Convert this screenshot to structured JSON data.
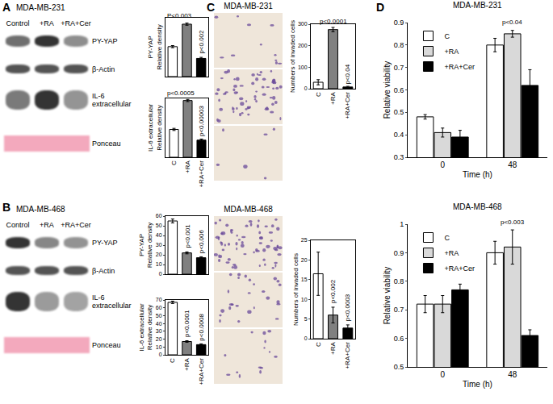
{
  "letters": [
    "A",
    "B",
    "C",
    "D"
  ],
  "blots": [
    {
      "cell_line": "MDA-MB-231",
      "lanes": [
        "Control",
        "+RA",
        "+RA+Cer"
      ],
      "rows": [
        "PY-YAP",
        "β-Actin",
        [
          "IL-6",
          "extracellular"
        ],
        "Ponceau"
      ]
    },
    {
      "cell_line": "MDA-MB-468",
      "lanes": [
        "Control",
        "+RA",
        "+RA+Cer"
      ],
      "rows": [
        "PY-YAP",
        "β-Actin",
        [
          "IL-6",
          "extracellular"
        ],
        "Ponceau"
      ]
    }
  ],
  "micrographs": [
    {
      "cell_line": "MDA-MB-231"
    },
    {
      "cell_line": "MDA-MB-468"
    }
  ],
  "chart_data": [
    {
      "type": "bar",
      "ylabel": [
        "PY-YAP",
        "Relative density"
      ],
      "categories": [
        "C",
        "+RA",
        "+RA+Cer"
      ],
      "values": [
        28,
        49,
        17
      ],
      "errors": [
        1,
        1,
        1
      ],
      "colors": [
        "#ffffff",
        "#808080",
        "#000000"
      ],
      "ylim": [
        0,
        55
      ],
      "tick_labels": false,
      "annotations": [
        {
          "text": "P<0.003",
          "categories": [
            "C",
            "+RA"
          ],
          "y": 52
        },
        {
          "text": "p<0.002",
          "category": "+RA+Cer",
          "y": 20
        }
      ]
    },
    {
      "type": "bar",
      "ylabel": [
        "IL-6 extracellular",
        "Relative density"
      ],
      "categories": [
        "C",
        "+RA",
        "+RA+Cer"
      ],
      "values": [
        26,
        53,
        16
      ],
      "errors": [
        1,
        1,
        1
      ],
      "colors": [
        "#ffffff",
        "#808080",
        "#000000"
      ],
      "ylim": [
        0,
        55
      ],
      "tick_labels": "x",
      "annotations": [
        {
          "text": "p<0.0005",
          "categories": [
            "C",
            "+RA"
          ],
          "y": 55
        },
        {
          "text": "p<0.00003",
          "category": "+RA+Cer",
          "y": 18
        }
      ]
    },
    {
      "type": "bar",
      "ylabel": [
        "PY-YAP",
        "Relative density"
      ],
      "categories": [
        "C",
        "+RA",
        "+RA+Cer"
      ],
      "values": [
        55,
        22,
        17
      ],
      "errors": [
        2,
        1,
        1
      ],
      "colors": [
        "#ffffff",
        "#808080",
        "#000000"
      ],
      "ylim": [
        0,
        60
      ],
      "yticks": [
        0,
        10,
        20,
        30,
        40,
        50,
        60
      ],
      "tick_labels": "y",
      "annotations": [
        {
          "text": "p<0.001",
          "category": "+RA",
          "y": 25
        },
        {
          "text": "p<0.006",
          "category": "+RA+Cer",
          "y": 20
        }
      ]
    },
    {
      "type": "bar",
      "ylabel": [
        "IL-6 extracellular",
        "Relative density"
      ],
      "categories": [
        "C",
        "+RA",
        "+RA+Cer"
      ],
      "values": [
        67,
        17,
        13
      ],
      "errors": [
        1.5,
        1,
        1
      ],
      "colors": [
        "#ffffff",
        "#808080",
        "#000000"
      ],
      "ylim": [
        0,
        70
      ],
      "yticks": [
        0,
        10,
        20,
        30,
        40,
        50,
        60,
        70
      ],
      "tick_labels": true,
      "annotations": [
        {
          "text": "p<0.0001",
          "category": "+RA",
          "y": 20
        },
        {
          "text": "p<0.0008",
          "category": "+RA+Cer",
          "y": 16
        }
      ]
    },
    {
      "type": "bar",
      "ylabel": "Numbers of invaded cells",
      "categories": [
        "C",
        "+RA",
        "+RA+Cer"
      ],
      "values": [
        30,
        275,
        8
      ],
      "errors": [
        12,
        10,
        3
      ],
      "colors": [
        "#ffffff",
        "#808080",
        "#000000"
      ],
      "ylim": [
        0,
        300
      ],
      "yticks": [
        0,
        100,
        200,
        300
      ],
      "tick_labels": true,
      "annotations": [
        {
          "text": "p<0.0001",
          "categories": [
            "+RA"
          ],
          "y": 290
        },
        {
          "text": "p<0.04",
          "category": "+RA+Cer",
          "y": 14
        }
      ]
    },
    {
      "type": "bar",
      "ylabel": "Numbers of invaded cells",
      "categories": [
        "C",
        "+RA",
        "+RA+Cer"
      ],
      "values": [
        16.5,
        6,
        2.7
      ],
      "errors": [
        5.5,
        2,
        0.8
      ],
      "colors": [
        "#ffffff",
        "#808080",
        "#000000"
      ],
      "ylim": [
        0,
        25
      ],
      "yticks": [
        0,
        5,
        10,
        15,
        20,
        25
      ],
      "tick_labels": true,
      "annotations": [
        {
          "text": "p<0.002",
          "category": "+RA",
          "y": 8.5
        },
        {
          "text": "p<0.0003",
          "category": "+RA+Cer",
          "y": 4
        }
      ]
    },
    {
      "type": "bar",
      "title": "MDA-MB-231",
      "xlabel": "Time (h)",
      "ylabel": "Relative viability",
      "categories": [
        "0",
        "48"
      ],
      "series": [
        {
          "name": "C",
          "color": "#ffffff",
          "values": [
            0.48,
            0.8
          ],
          "errors": [
            0.01,
            0.03
          ]
        },
        {
          "name": "+RA",
          "color": "#d9d9d9",
          "values": [
            0.41,
            0.85
          ],
          "errors": [
            0.02,
            0.015
          ]
        },
        {
          "name": "+RA+Cer",
          "color": "#000000",
          "values": [
            0.39,
            0.62
          ],
          "errors": [
            0.03,
            0.07
          ]
        }
      ],
      "ylim": [
        0.3,
        0.9
      ],
      "yticks": [
        0.3,
        0.4,
        0.5,
        0.6,
        0.7,
        0.8,
        0.9
      ],
      "legend": "top-left",
      "annotations": [
        {
          "text": "p<0.04",
          "categories": [
            "48"
          ],
          "y": 0.88
        }
      ]
    },
    {
      "type": "bar",
      "title": "MDA-MB-468",
      "xlabel": "Time (h)",
      "ylabel": "Relative viability",
      "categories": [
        "0",
        "48"
      ],
      "series": [
        {
          "name": "C",
          "color": "#ffffff",
          "values": [
            0.72,
            0.9
          ],
          "errors": [
            0.03,
            0.04
          ]
        },
        {
          "name": "+RA",
          "color": "#d9d9d9",
          "values": [
            0.72,
            0.92
          ],
          "errors": [
            0.03,
            0.06
          ]
        },
        {
          "name": "+RA+Cer",
          "color": "#000000",
          "values": [
            0.77,
            0.61
          ],
          "errors": [
            0.02,
            0.02
          ]
        }
      ],
      "ylim": [
        0.5,
        1
      ],
      "yticks": [
        0.5,
        0.6,
        0.7,
        0.8,
        0.9,
        1
      ],
      "legend": "top-left",
      "annotations": [
        {
          "text": "p<0.003",
          "categories": [
            "48"
          ],
          "y": 0.99
        }
      ]
    }
  ]
}
